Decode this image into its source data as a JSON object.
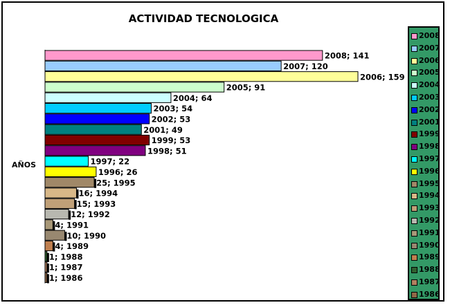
{
  "chart_data": {
    "type": "bar",
    "orientation": "horizontal",
    "title": "ACTIVIDAD TECNOLOGICA",
    "ylabel": "AÑOS",
    "xlim": [
      0,
      159
    ],
    "grid": false,
    "legend": "right",
    "bars": [
      {
        "year": "2008",
        "value": 141,
        "label": "2008; 141",
        "color": "#ff99cc"
      },
      {
        "year": "2007",
        "value": 120,
        "label": "2007; 120",
        "color": "#99ccff"
      },
      {
        "year": "2006",
        "value": 159,
        "label": "2006; 159",
        "color": "#ffff99"
      },
      {
        "year": "2005",
        "value": 91,
        "label": "2005; 91",
        "color": "#ccffcc"
      },
      {
        "year": "2004",
        "value": 64,
        "label": "2004; 64",
        "color": "#ccffff"
      },
      {
        "year": "2003",
        "value": 54,
        "label": "2003; 54",
        "color": "#00ccff"
      },
      {
        "year": "2002",
        "value": 53,
        "label": "2002; 53",
        "color": "#0000ff"
      },
      {
        "year": "2001",
        "value": 49,
        "label": "2001; 49",
        "color": "#008080"
      },
      {
        "year": "1999",
        "value": 53,
        "label": "1999; 53",
        "color": "#800000"
      },
      {
        "year": "1998",
        "value": 51,
        "label": "1998; 51",
        "color": "#800080"
      },
      {
        "year": "1997",
        "value": 22,
        "label": "1997; 22",
        "color": "#00ffff"
      },
      {
        "year": "1996",
        "value": 26,
        "label": "1996; 26",
        "color": "#ffff00"
      },
      {
        "year": "1995",
        "value": 25,
        "label": "25;  1995",
        "color": "#a08868"
      },
      {
        "year": "1994",
        "value": 16,
        "label": "16;  1994",
        "color": "#d8b888"
      },
      {
        "year": "1993",
        "value": 15,
        "label": "15;  1993",
        "color": "#c0a078"
      },
      {
        "year": "1992",
        "value": 12,
        "label": "12;  1992",
        "color": "#b8b8b0"
      },
      {
        "year": "1991",
        "value": 4,
        "label": "4;  1991",
        "color": "#a89878"
      },
      {
        "year": "1990",
        "value": 10,
        "label": "10;  1990",
        "color": "#988870"
      },
      {
        "year": "1989",
        "value": 4,
        "label": "4;  1989",
        "color": "#c08050"
      },
      {
        "year": "1988",
        "value": 1,
        "label": "1;  1988",
        "color": "#306030"
      },
      {
        "year": "1987",
        "value": 1,
        "label": "1;  1987",
        "color": "#b08060"
      },
      {
        "year": "1986",
        "value": 1,
        "label": "1;  1986",
        "color": "#906848"
      }
    ]
  }
}
